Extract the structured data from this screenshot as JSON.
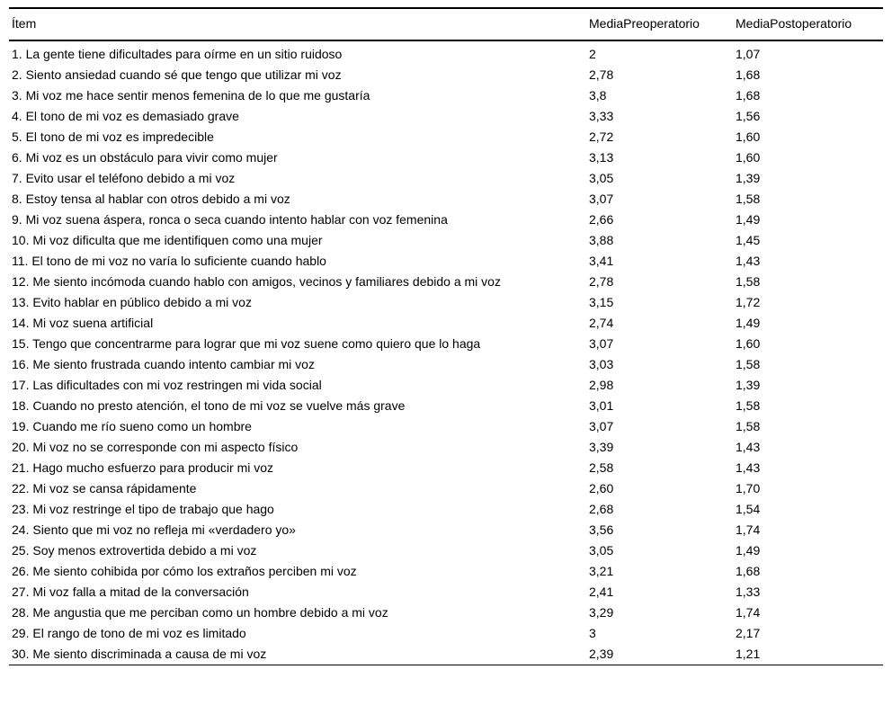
{
  "colors": {
    "background": "#ffffff",
    "text": "#000000",
    "rule": "#000000"
  },
  "table": {
    "columns": [
      {
        "key": "item",
        "label": "Ítem"
      },
      {
        "key": "pre",
        "label": "MediaPreoperatorio"
      },
      {
        "key": "post",
        "label": "MediaPostoperatorio"
      }
    ],
    "rows": [
      [
        "1. La gente tiene dificultades para oírme en un sitio ruidoso",
        "2",
        "1,07"
      ],
      [
        "2. Siento ansiedad cuando sé que tengo que utilizar mi voz",
        "2,78",
        "1,68"
      ],
      [
        "3. Mi voz me hace sentir menos femenina de lo que me gustaría",
        "3,8",
        "1,68"
      ],
      [
        "4. El tono de mi voz es demasiado grave",
        "3,33",
        "1,56"
      ],
      [
        "5. El tono de mi voz es impredecible",
        "2,72",
        "1,60"
      ],
      [
        "6. Mi voz es un obstáculo para vivir como mujer",
        "3,13",
        "1,60"
      ],
      [
        "7. Evito usar el teléfono debido a mi voz",
        "3,05",
        "1,39"
      ],
      [
        "8. Estoy tensa al hablar con otros debido a mi voz",
        "3,07",
        "1,58"
      ],
      [
        "9. Mi voz suena áspera, ronca o seca cuando intento hablar con voz femenina",
        "2,66",
        "1,49"
      ],
      [
        "10. Mi voz dificulta que me identifiquen como una mujer",
        "3,88",
        "1,45"
      ],
      [
        "11. El tono de mi voz no varía lo suficiente cuando hablo",
        "3,41",
        "1,43"
      ],
      [
        "12. Me siento incómoda cuando hablo con amigos, vecinos y familiares debido a mi voz",
        "2,78",
        "1,58"
      ],
      [
        "13. Evito hablar en público debido a mi voz",
        "3,15",
        "1,72"
      ],
      [
        "14. Mi voz suena artificial",
        "2,74",
        "1,49"
      ],
      [
        "15. Tengo que concentrarme para lograr que mi voz suene como quiero que lo haga",
        "3,07",
        "1,60"
      ],
      [
        "16. Me siento frustrada cuando intento cambiar mi voz",
        "3,03",
        "1,58"
      ],
      [
        "17. Las dificultades con mi voz restringen mi vida social",
        "2,98",
        "1,39"
      ],
      [
        "18. Cuando no presto atención, el tono de mi voz se vuelve más grave",
        "3,01",
        "1,58"
      ],
      [
        "19. Cuando me río sueno como un hombre",
        "3,07",
        "1,58"
      ],
      [
        "20. Mi voz no se corresponde con mi aspecto físico",
        "3,39",
        "1,43"
      ],
      [
        "21. Hago mucho esfuerzo para producir mi voz",
        "2,58",
        "1,43"
      ],
      [
        "22. Mi voz se cansa rápidamente",
        "2,60",
        "1,70"
      ],
      [
        "23. Mi voz restringe el tipo de trabajo que hago",
        "2,68",
        "1,54"
      ],
      [
        "24. Siento que mi voz no refleja mi «verdadero yo»",
        "3,56",
        "1,74"
      ],
      [
        "25. Soy menos extrovertida debido a mi voz",
        "3,05",
        "1,49"
      ],
      [
        "26. Me siento cohibida por cómo los extraños perciben mi voz",
        "3,21",
        "1,68"
      ],
      [
        "27. Mi voz falla a mitad de la conversación",
        "2,41",
        "1,33"
      ],
      [
        "28. Me angustia que me perciban como un hombre debido a mi voz",
        "3,29",
        "1,74"
      ],
      [
        "29. El rango de tono de mi voz es limitado",
        "3",
        "2,17"
      ],
      [
        "30. Me siento discriminada a causa de mi voz",
        "2,39",
        "1,21"
      ]
    ]
  }
}
